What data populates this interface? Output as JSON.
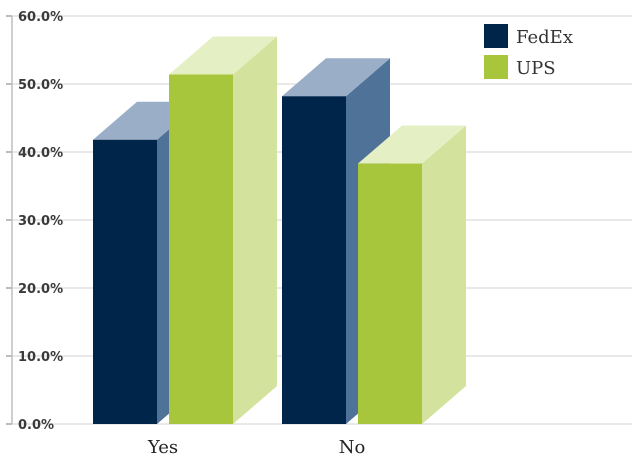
{
  "chart_data": {
    "type": "bar",
    "categories": [
      "Yes",
      "No"
    ],
    "series": [
      {
        "name": "FedEx",
        "values": [
          41.8,
          48.2
        ],
        "color": "#00254a",
        "side_color": "#4f7299",
        "top_color": "#9aaec8"
      },
      {
        "name": "UPS",
        "values": [
          51.4,
          38.3
        ],
        "color": "#a8c63b",
        "side_color": "#d3e29c",
        "top_color": "#e5efc4"
      }
    ],
    "yticks": [
      "0.0%",
      "10.0%",
      "20.0%",
      "30.0%",
      "40.0%",
      "50.0%",
      "60.0%"
    ],
    "ylim": [
      0,
      60
    ],
    "grid": true,
    "legend_position": "top-right",
    "style": "3d-bar"
  }
}
